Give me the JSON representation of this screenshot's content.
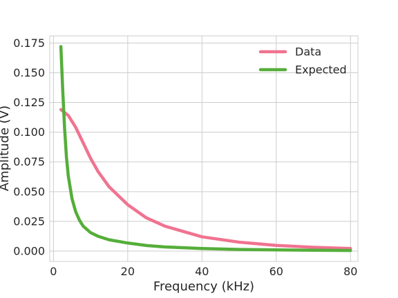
{
  "chart_data": {
    "type": "line",
    "xlabel": "Frequency (kHz)",
    "ylabel": "Amplitude (V)",
    "xlim": [
      -1,
      82
    ],
    "ylim": [
      -0.0087,
      0.181
    ],
    "xticks": [
      0,
      20,
      40,
      60,
      80
    ],
    "xtick_labels": [
      "0",
      "20",
      "40",
      "60",
      "80"
    ],
    "yticks": [
      0.0,
      0.025,
      0.05,
      0.075,
      0.1,
      0.125,
      0.15,
      0.175
    ],
    "ytick_labels": [
      "0.000",
      "0.025",
      "0.050",
      "0.075",
      "0.100",
      "0.125",
      "0.150",
      "0.175"
    ],
    "grid": true,
    "legend_position": "top-right",
    "series": [
      {
        "name": "Data",
        "color": "#f07390",
        "x": [
          2,
          4,
          6,
          8,
          10,
          12,
          15,
          20,
          25,
          30,
          40,
          50,
          60,
          70,
          80
        ],
        "y": [
          0.119,
          0.114,
          0.104,
          0.091,
          0.078,
          0.067,
          0.054,
          0.039,
          0.028,
          0.021,
          0.012,
          0.0075,
          0.0048,
          0.0032,
          0.0022
        ]
      },
      {
        "name": "Expected",
        "color": "#55ae3a",
        "x": [
          2,
          2.5,
          3,
          3.5,
          4,
          5,
          6,
          7,
          8,
          10,
          12,
          15,
          20,
          25,
          30,
          40,
          50,
          60,
          70,
          80
        ],
        "y": [
          0.172,
          0.135,
          0.103,
          0.079,
          0.063,
          0.044,
          0.033,
          0.026,
          0.021,
          0.0155,
          0.0125,
          0.0095,
          0.0068,
          0.0047,
          0.0035,
          0.0022,
          0.0014,
          0.001,
          0.0007,
          0.0005
        ]
      }
    ]
  }
}
